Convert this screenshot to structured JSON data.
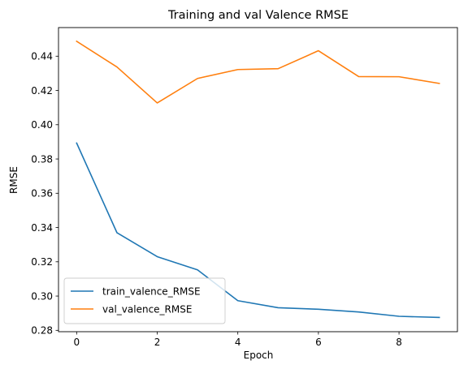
{
  "chart_data": {
    "type": "line",
    "title": "Training and val Valence RMSE",
    "xlabel": "Epoch",
    "ylabel": "RMSE",
    "xlim": [
      -0.45,
      9.45
    ],
    "ylim": [
      0.2792,
      0.4567
    ],
    "xticks": [
      0,
      2,
      4,
      6,
      8
    ],
    "xtick_labels": [
      "0",
      "2",
      "4",
      "6",
      "8"
    ],
    "yticks": [
      0.28,
      0.3,
      0.32,
      0.34,
      0.36,
      0.38,
      0.4,
      0.42,
      0.44
    ],
    "ytick_labels": [
      "0.28",
      "0.30",
      "0.32",
      "0.34",
      "0.36",
      "0.38",
      "0.40",
      "0.42",
      "0.44"
    ],
    "grid": false,
    "legend_position": "lower-left",
    "x": [
      0,
      1,
      2,
      3,
      4,
      5,
      6,
      7,
      8,
      9
    ],
    "series": [
      {
        "name": "train_valence_RMSE",
        "color": "#1f77b4",
        "values": [
          0.3893,
          0.337,
          0.323,
          0.3153,
          0.2973,
          0.2932,
          0.2923,
          0.2907,
          0.2882,
          0.2875
        ]
      },
      {
        "name": "val_valence_RMSE",
        "color": "#ff7f0e",
        "values": [
          0.4487,
          0.4337,
          0.4127,
          0.427,
          0.4322,
          0.4327,
          0.4432,
          0.4281,
          0.428,
          0.4241
        ]
      }
    ]
  }
}
